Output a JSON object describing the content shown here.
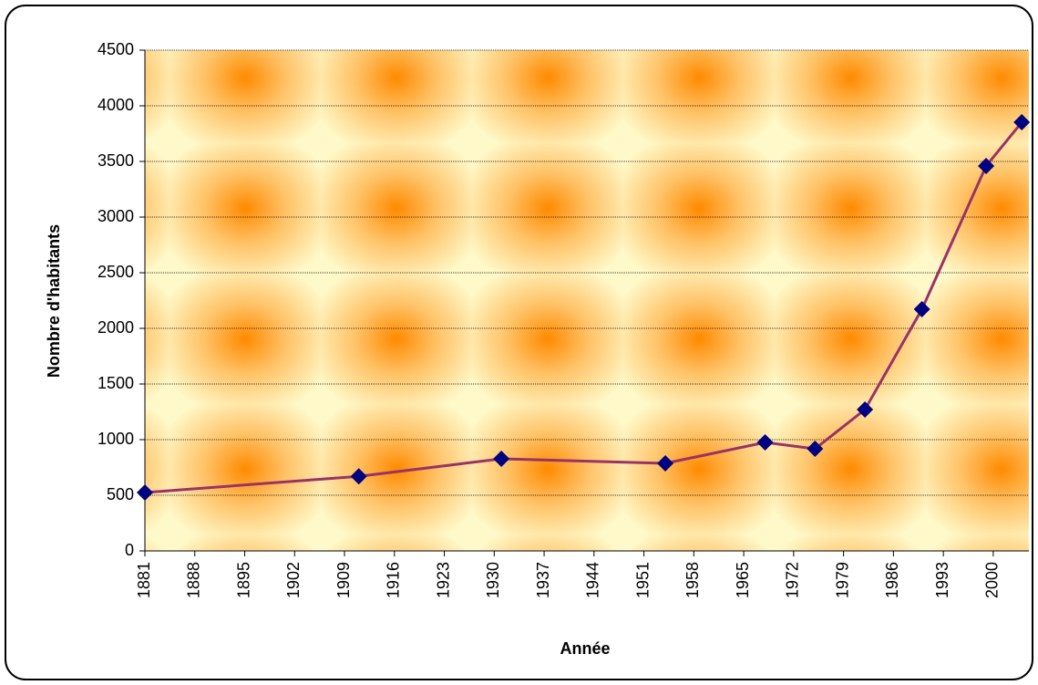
{
  "chart_data": {
    "type": "line",
    "x_label": "Année",
    "y_label": "Nombre d'habitants",
    "x": [
      1881,
      1911,
      1931,
      1954,
      1968,
      1975,
      1982,
      1990,
      1999,
      2004
    ],
    "values": [
      525,
      670,
      828,
      787,
      975,
      918,
      1270,
      2172,
      3459,
      3852
    ],
    "color": "#993366",
    "marker_color": "#000080",
    "xlim": [
      1881,
      2005
    ],
    "xticks": [
      1881,
      1888,
      1895,
      1902,
      1909,
      1916,
      1923,
      1930,
      1937,
      1944,
      1951,
      1958,
      1965,
      1972,
      1979,
      1986,
      1993,
      2000
    ],
    "ylim": [
      0,
      4500
    ],
    "yticks": [
      0,
      500,
      1000,
      1500,
      2000,
      2500,
      3000,
      3500,
      4000,
      4500
    ],
    "grid": true
  }
}
